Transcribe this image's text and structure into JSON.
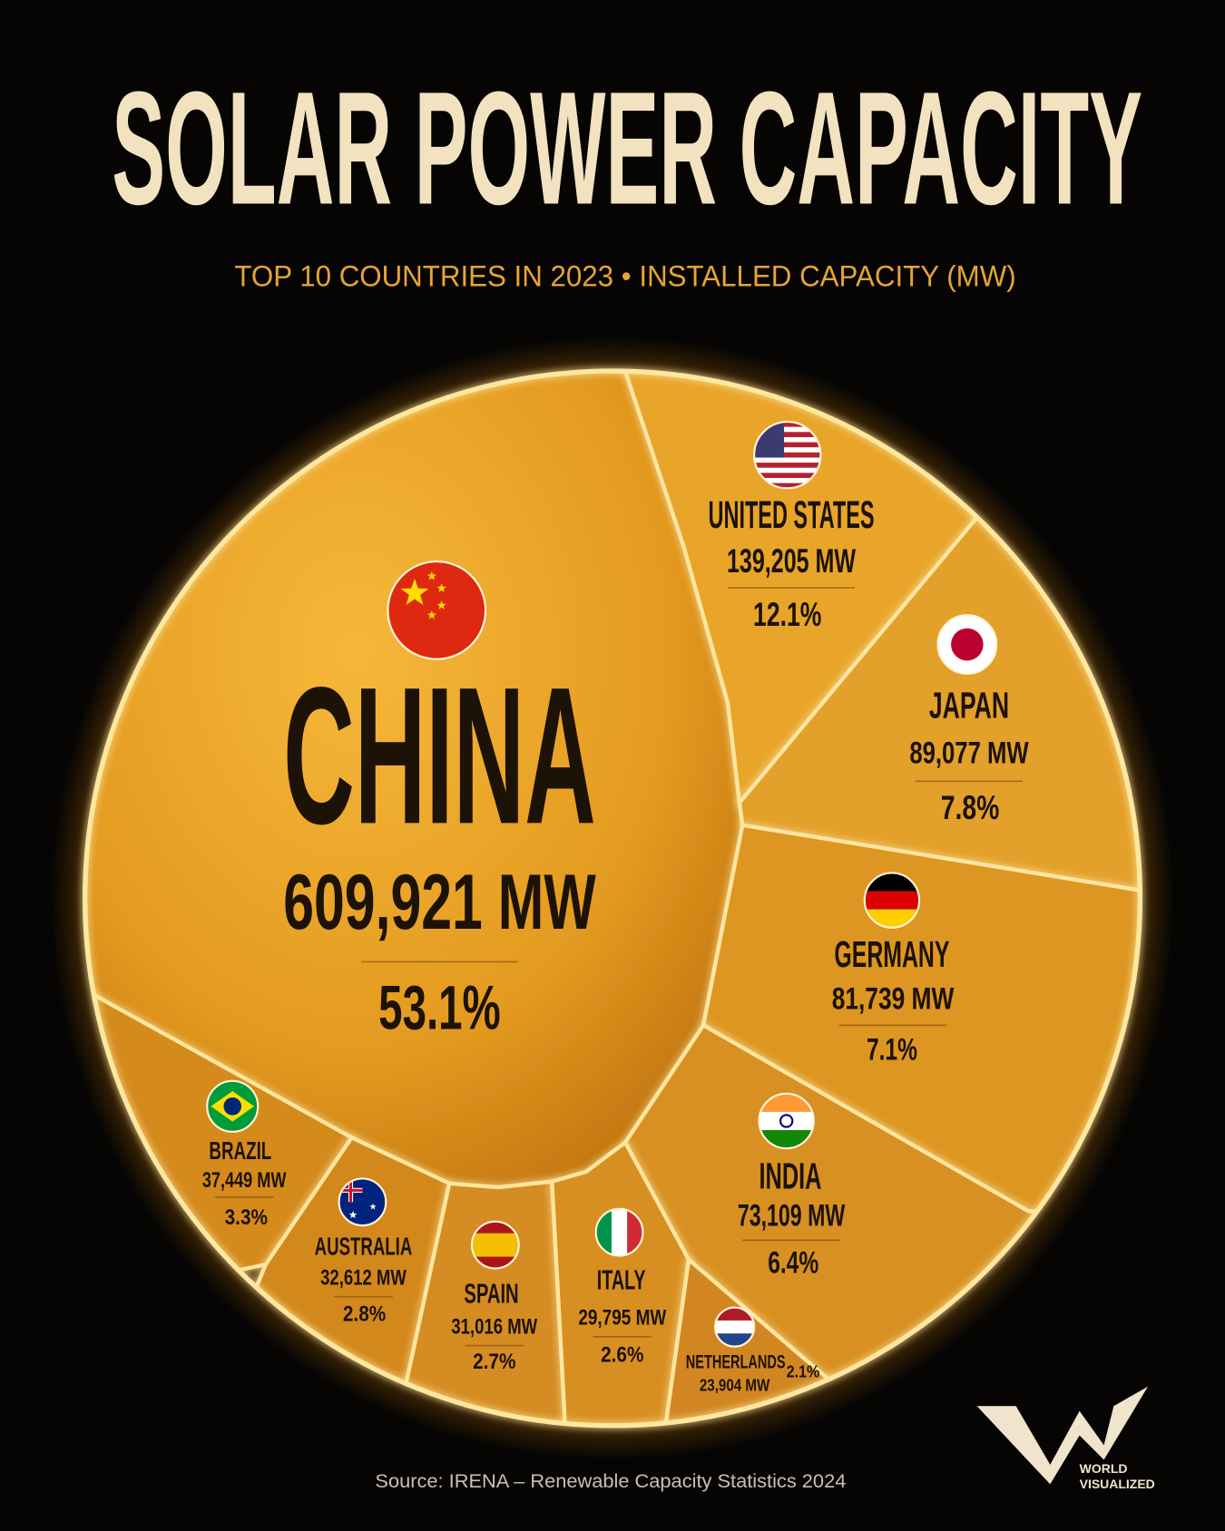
{
  "chart_data": {
    "type": "voronoi",
    "title": "SOLAR POWER CAPACITY",
    "subtitle": "TOP 10 COUNTRIES IN 2023 • INSTALLED CAPACITY (MW)",
    "categories": [
      "CHINA",
      "UNITED STATES",
      "JAPAN",
      "GERMANY",
      "INDIA",
      "BRAZIL",
      "AUSTRALIA",
      "SPAIN",
      "ITALY",
      "NETHERLANDS"
    ],
    "values": [
      609921,
      139205,
      89077,
      81739,
      73109,
      37449,
      32612,
      31016,
      29795,
      23904
    ],
    "value_labels": [
      "609,921 MW",
      "139,205 MW",
      "89,077 MW",
      "81,739 MW",
      "73,109 MW",
      "37,449 MW",
      "32,612 MW",
      "31,016 MW",
      "29,795 MW",
      "23,904 MW"
    ],
    "shares": [
      53.1,
      12.1,
      7.8,
      7.1,
      6.4,
      3.3,
      2.8,
      2.7,
      2.6,
      2.1
    ],
    "share_labels": [
      "53.1%",
      "12.1%",
      "7.8%",
      "7.1%",
      "6.4%",
      "3.3%",
      "2.8%",
      "2.7%",
      "2.6%",
      "2.1%"
    ],
    "source": "Source: IRENA – Renewable Capacity Statistics 2024"
  },
  "logo": {
    "line1": "WORLD",
    "line2": "VISUALIZED"
  }
}
